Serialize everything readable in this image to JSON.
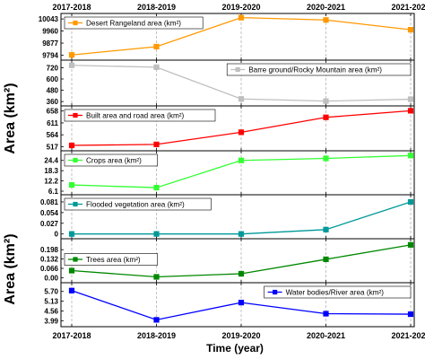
{
  "chart_data": {
    "type": "line",
    "categories": [
      "2017-2018",
      "2018-2019",
      "2019-2020",
      "2020-2021",
      "2021-2022"
    ],
    "xlabel": "Time (year)",
    "ylabel": "Area (km²)",
    "ylabel_repeat": "Area (km²)",
    "grid": "vertical dashed lines at each category",
    "panels": [
      {
        "name": "Desert Rangeland area (km²)",
        "color": "#ff9900",
        "marker": "square",
        "values": [
          9796,
          9853,
          10052,
          10036,
          9969
        ],
        "ylim": [
          9785,
          10056
        ],
        "yticks": [
          "10043",
          "9960",
          "9877",
          "9794"
        ],
        "ytick_values": [
          10043,
          9960,
          9877,
          9794
        ],
        "legend": "top-left"
      },
      {
        "name": "Barre ground/Rocky Mountain area (km²)",
        "color": "#bfbfbf",
        "marker": "square",
        "values": [
          745,
          725,
          388,
          365,
          385
        ],
        "ylim": [
          352,
          762
        ],
        "yticks": [
          "720",
          "600",
          "480",
          "360"
        ],
        "ytick_values": [
          720,
          600,
          480,
          360
        ],
        "legend": "top-right"
      },
      {
        "name": "Built area and road area (km²)",
        "color": "#ff0000",
        "marker": "square",
        "values": [
          522,
          526,
          574,
          633,
          659
        ],
        "ylim": [
          515,
          664
        ],
        "yticks": [
          "658",
          "611",
          "564",
          "517"
        ],
        "ytick_values": [
          658,
          611,
          564,
          517
        ],
        "legend": "top-left"
      },
      {
        "name": "Crops area (km²)",
        "color": "#33ff33",
        "marker": "square",
        "values": [
          9.8,
          8.2,
          24.4,
          25.6,
          27.3
        ],
        "ylim": [
          6.1,
          28.0
        ],
        "yticks": [
          "24.4",
          "18.3",
          "12.2",
          "6.1"
        ],
        "ytick_values": [
          24.4,
          18.3,
          12.2,
          6.1
        ],
        "legend": "top-left"
      },
      {
        "name": "Flooded vegetation area (km²)",
        "color": "#009999",
        "marker": "square",
        "values": [
          0.0,
          0.0,
          0.0,
          0.011,
          0.081
        ],
        "ylim": [
          -0.003,
          0.09
        ],
        "yticks": [
          "0.081",
          "0.054",
          "0.027",
          "0"
        ],
        "ytick_values": [
          0.081,
          0.054,
          0.027,
          0
        ],
        "legend": "top-left"
      },
      {
        "name": "Trees area (km²)",
        "color": "#008800",
        "marker": "square",
        "values": [
          0.05,
          0.006,
          0.028,
          0.13,
          0.232
        ],
        "ylim": [
          -0.01,
          0.25
        ],
        "yticks": [
          "0.198",
          "0.132",
          "0.066",
          "0.00"
        ],
        "ytick_values": [
          0.198,
          0.132,
          0.066,
          0.0
        ],
        "legend": "middle-left"
      },
      {
        "name": "Water bodies/River area (km²)",
        "color": "#0000ff",
        "marker": "square",
        "values": [
          5.75,
          4.04,
          5.05,
          4.4,
          4.37
        ],
        "ylim": [
          3.85,
          6.0
        ],
        "yticks": [
          "5.70",
          "5.13",
          "4.56",
          "3.99"
        ],
        "ytick_values": [
          5.7,
          5.13,
          4.56,
          3.99
        ],
        "legend": "top-right"
      }
    ]
  }
}
